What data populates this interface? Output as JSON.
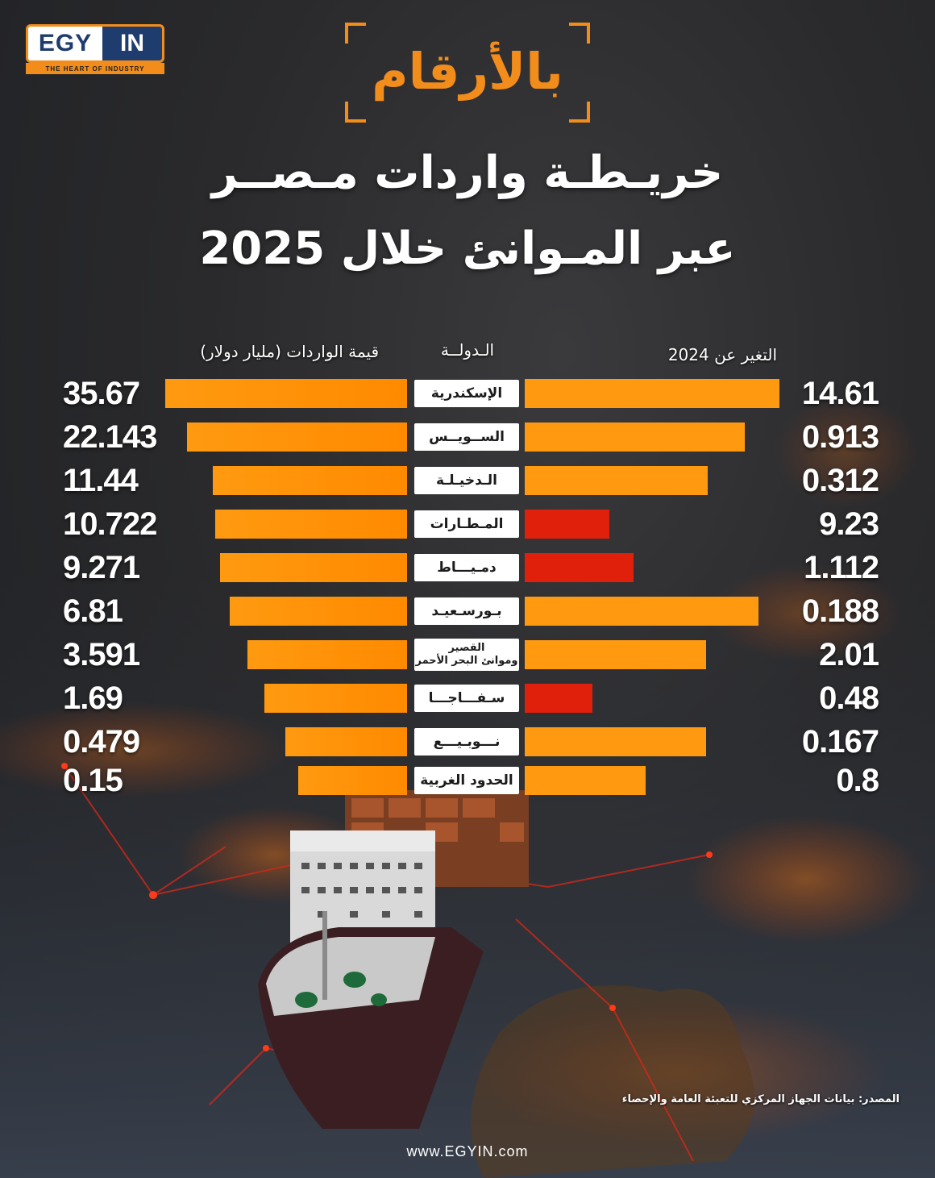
{
  "brand": {
    "logo_left": "EGY",
    "logo_right": "IN",
    "tagline": "THE HEART OF INDUSTRY",
    "website": "www.EGYIN.com"
  },
  "header": {
    "kicker": "بالأرقام",
    "title_line1": "خريـطـة واردات مـصــر",
    "title_line2": "عبر المـوانئ خلال 2025"
  },
  "columns": {
    "imports": "قيمة الواردات  (مليار دولار)",
    "port": "الـدولــة",
    "change": "التغير عن 2024"
  },
  "colors": {
    "orange": "#ff9a10",
    "red": "#e0200a",
    "accent": "#f28c1a"
  },
  "chart_data": {
    "type": "bar",
    "categories": [
      "الإسكندرية",
      "الســويــس",
      "الـدخيـلـة",
      "المـطـارات",
      "دمـيـــاط",
      "بـورسـعيـد",
      "القصير\nوموانئ البحر الأحمر",
      "سـفـــاجـــا",
      "نـــوبـيـــع",
      "الحدود الغربية"
    ],
    "series": [
      {
        "values": [
          35.67,
          22.143,
          11.44,
          10.722,
          9.271,
          6.81,
          3.591,
          1.69,
          0.479,
          0.15
        ],
        "labels": [
          "35.67",
          "22.143",
          "11.44",
          "10.722",
          "9.271",
          "6.81",
          "3.591",
          "1.69",
          "0.479",
          "0.15"
        ]
      },
      {
        "values": [
          14.61,
          0.913,
          0.312,
          9.23,
          1.112,
          0.188,
          2.01,
          0.48,
          0.167,
          0.8
        ],
        "labels": [
          "14.61",
          "0.913",
          "0.312",
          "9.23",
          "1.112",
          "0.188",
          "2.01",
          "0.48",
          "0.167",
          "0.8"
        ],
        "direction": [
          "up",
          "up",
          "up",
          "down",
          "down",
          "up",
          "up",
          "down",
          "up",
          "up"
        ]
      }
    ]
  },
  "footer": {
    "source": "المصدر: بيانات الجهاز المركزي للتعبئة العامة والإحصاء"
  }
}
